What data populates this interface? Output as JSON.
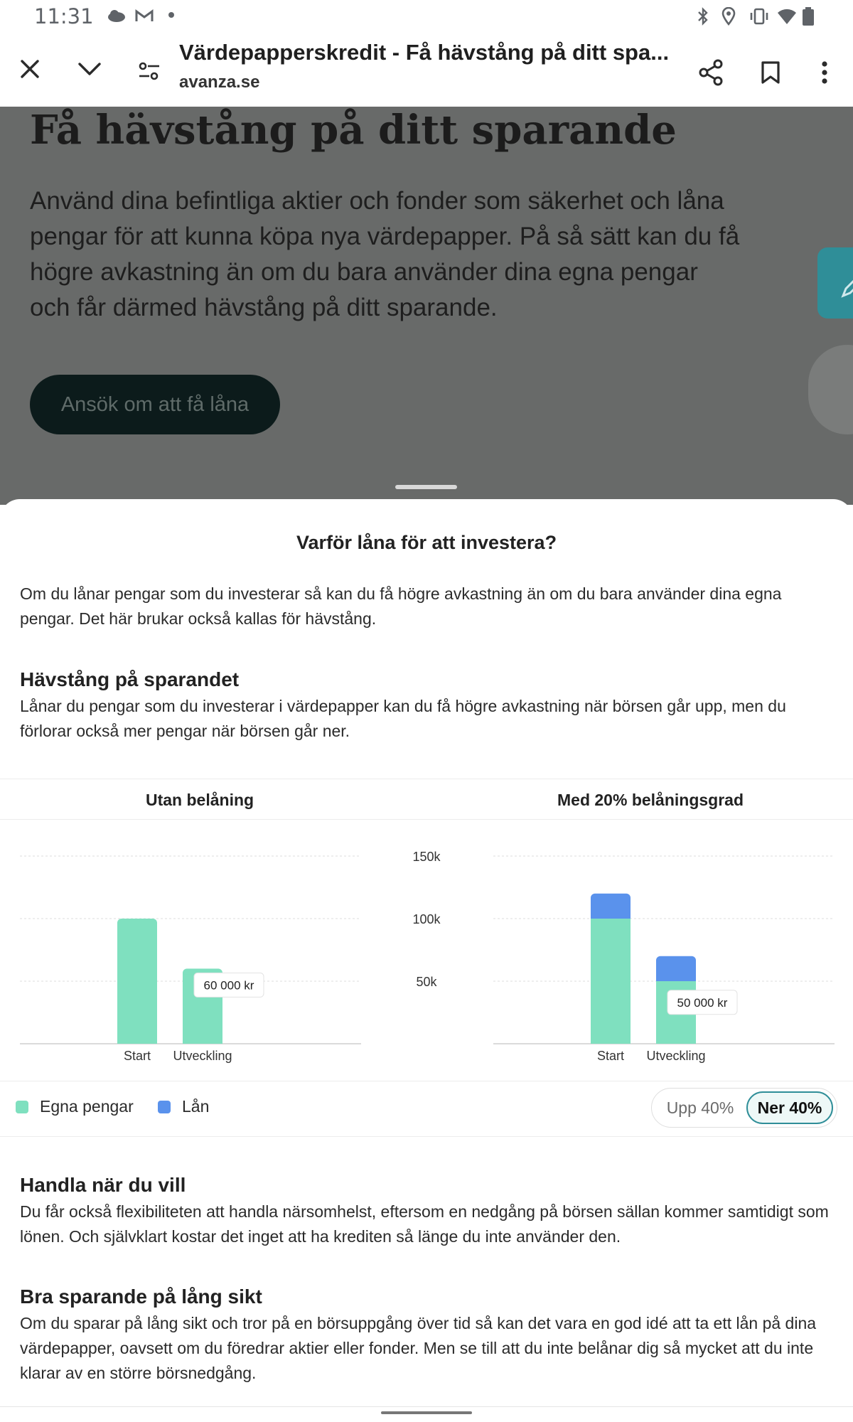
{
  "status": {
    "time": "11:31"
  },
  "toolbar": {
    "title": "Värdepapperskredit - Få hävstång på ditt spa...",
    "url": "avanza.se"
  },
  "page": {
    "hero_title": "Få hävstång på ditt sparande",
    "hero_text": "Använd dina befintliga aktier och fonder som säkerhet och låna pengar för att kunna köpa nya värdepapper. På så sätt kan du få högre avkastning än om du bara använder dina egna pengar och får därmed hävstång på ditt sparande.",
    "apply_button": "Ansök om att få låna"
  },
  "sheet": {
    "title": "Varför låna för att investera?",
    "intro": "Om du lånar pengar som du investerar så kan du få högre avkastning än om du bara använder dina egna pengar. Det här brukar också kallas för hävstång.",
    "section1_title": "Hävstång på sparandet",
    "section1_text": "Lånar du pengar som du investerar i värdepapper kan du få högre avkastning när börsen går upp, men du förlorar också mer pengar när börsen går ner.",
    "section2_title": "Handla när du vill",
    "section2_text": "Du får också flexibiliteten att handla närsomhelst, eftersom en nedgång på börsen sällan kommer samtidigt som lönen. Och självklart kostar det inget att ha krediten så länge du inte använder den.",
    "section3_title": "Bra sparande på lång sikt",
    "section3_text": "Om du sparar på lång sikt och tror på en börsuppgång över tid så kan det vara en god idé att ta ett lån på dina värdepapper, oavsett om du föredrar aktier eller fonder. Men se till att du inte belånar dig så mycket att du inte klarar av en större börsnedgång."
  },
  "legend": {
    "own": "Egna pengar",
    "loan": "Lån"
  },
  "toggle": {
    "up": "Upp 40%",
    "down": "Ner 40%"
  },
  "colors": {
    "own": "#7fe0bf",
    "loan": "#5a92ec",
    "accent": "#2f8e98"
  },
  "chart_data": [
    {
      "type": "bar",
      "stacked": true,
      "title": "Utan belåning",
      "categories": [
        "Start",
        "Utveckling"
      ],
      "series": [
        {
          "name": "Egna pengar",
          "values": [
            100000,
            60000
          ]
        },
        {
          "name": "Lån",
          "values": [
            0,
            0
          ]
        }
      ],
      "ylim": [
        0,
        150000
      ],
      "yticks": [
        "150k",
        "100k",
        "50k"
      ],
      "annotation": {
        "category": "Utveckling",
        "text": "60 000 kr"
      },
      "grid": true
    },
    {
      "type": "bar",
      "stacked": true,
      "title": "Med 20% belåningsgrad",
      "categories": [
        "Start",
        "Utveckling"
      ],
      "series": [
        {
          "name": "Egna pengar",
          "values": [
            100000,
            50000
          ]
        },
        {
          "name": "Lån",
          "values": [
            20000,
            20000
          ]
        }
      ],
      "ylim": [
        0,
        150000
      ],
      "yticks": [
        "150k",
        "100k",
        "50k"
      ],
      "annotation": {
        "category": "Utveckling",
        "text": "50 000 kr"
      },
      "grid": true
    }
  ]
}
